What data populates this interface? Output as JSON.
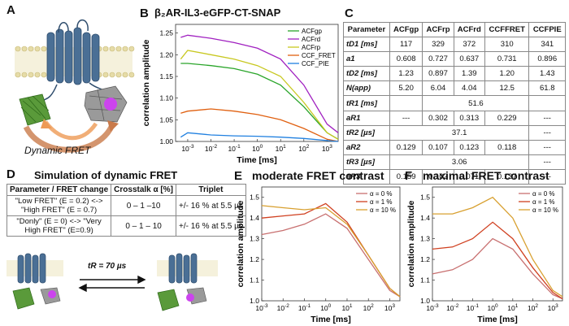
{
  "panel_labels": {
    "a": "A",
    "b": "B",
    "c": "C",
    "d": "D",
    "e": "E",
    "f": "F"
  },
  "panel_a": {
    "caption": "Dynamic FRET"
  },
  "panel_b": {
    "title": "β₂AR-IL3-eGFP-CT-SNAP",
    "xlabel": "Time [ms]",
    "ylabel": "correlation amplitude"
  },
  "panel_c": {
    "headers": [
      "Parameter",
      "ACFgp",
      "ACFrp",
      "ACFrd",
      "CCFFRET",
      "CCFPIE"
    ],
    "rows": [
      {
        "label": "tD1 [ms]",
        "cells": [
          "117",
          "329",
          "372",
          "310",
          "341"
        ]
      },
      {
        "label": "a1",
        "cells": [
          "0.608",
          "0.727",
          "0.637",
          "0.731",
          "0.896"
        ]
      },
      {
        "label": "tD2 [ms]",
        "cells": [
          "1.23",
          "0.897",
          "1.39",
          "1.20",
          "1.43"
        ]
      },
      {
        "label": "N(app)",
        "cells": [
          "5.20",
          "6.04",
          "4.04",
          "12.5",
          "61.8"
        ]
      },
      {
        "label": "tR1 [ms]",
        "cells": [
          "",
          "51.6",
          ""
        ]
      },
      {
        "label": "aR1",
        "cells": [
          "---",
          "0.302",
          "0.313",
          "0.229",
          "---"
        ]
      },
      {
        "label": "tR2 [µs]",
        "cells": [
          "37.1",
          "---"
        ]
      },
      {
        "label": "aR2",
        "cells": [
          "0.129",
          "0.107",
          "0.123",
          "0.118",
          "---"
        ]
      },
      {
        "label": "tR3 [µs]",
        "cells": [
          "3.06",
          "---"
        ]
      },
      {
        "label": "aR3",
        "cells": [
          "0.159",
          "0.102",
          "0.071",
          "0.137",
          "---"
        ]
      }
    ]
  },
  "panel_d": {
    "title": "Simulation of dynamic FRET",
    "headers": [
      "Parameter / FRET change",
      "Crosstalk α [%]",
      "Triplet"
    ],
    "rows": [
      {
        "param": "\"Low FRET\" (E = 0.2) <-> \"High FRET\" (E = 0.7)",
        "crosstalk": "0 – 1 –10",
        "triplet": "+/- 16 % at 5.5 µs"
      },
      {
        "param": "\"Donly\" (E = 0) <-> \"Very High FRET\" (E=0.9)",
        "crosstalk": "0 – 1 – 10",
        "triplet": "+/- 16 % at 5.5 µs"
      }
    ],
    "relaxation_label": "tR = 70 µs"
  },
  "panel_e": {
    "title": "moderate FRET contrast",
    "xlabel": "Time [ms]",
    "ylabel": "correlation amplitude"
  },
  "panel_f": {
    "title": "maximal FRET contrast",
    "xlabel": "Time [ms]",
    "ylabel": "correlation amplitude"
  },
  "chart_data": [
    {
      "type": "line",
      "panel": "B",
      "title": "β₂AR-IL3-eGFP-CT-SNAP",
      "xlabel": "Time [ms]",
      "ylabel": "correlation amplitude",
      "xscale": "log",
      "xlim": [
        0.0003,
        3000
      ],
      "ylim": [
        1.0,
        1.27
      ],
      "xticks": [
        "10^-3",
        "10^-2",
        "10^-1",
        "10^0",
        "10^1",
        "10^2",
        "10^3"
      ],
      "yticks": [
        "1.00",
        "1.05",
        "1.10",
        "1.15",
        "1.20",
        "1.25"
      ],
      "legend": "top-right",
      "series": [
        {
          "name": "ACFgp",
          "color": "#2aa52a",
          "x": [
            0.0005,
            0.001,
            0.01,
            0.1,
            1,
            10,
            100,
            1000,
            3000
          ],
          "y": [
            1.18,
            1.18,
            1.175,
            1.168,
            1.155,
            1.13,
            1.08,
            1.02,
            1.005
          ]
        },
        {
          "name": "ACFrd",
          "color": "#a020c0",
          "x": [
            0.0005,
            0.001,
            0.01,
            0.1,
            1,
            10,
            100,
            1000,
            3000
          ],
          "y": [
            1.24,
            1.245,
            1.238,
            1.228,
            1.215,
            1.19,
            1.13,
            1.04,
            1.02
          ]
        },
        {
          "name": "ACFrp",
          "color": "#c8c820",
          "x": [
            0.0005,
            0.001,
            0.01,
            0.1,
            1,
            10,
            100,
            1000,
            3000
          ],
          "y": [
            1.19,
            1.21,
            1.2,
            1.19,
            1.175,
            1.15,
            1.09,
            1.02,
            1.005
          ]
        },
        {
          "name": "CCF_FRET",
          "color": "#e06010",
          "x": [
            0.0005,
            0.001,
            0.01,
            0.1,
            1,
            10,
            100,
            1000,
            3000
          ],
          "y": [
            1.065,
            1.07,
            1.075,
            1.07,
            1.062,
            1.05,
            1.03,
            1.005,
            1.0
          ]
        },
        {
          "name": "CCF_PIE",
          "color": "#2080e0",
          "x": [
            0.0005,
            0.001,
            0.01,
            0.1,
            1,
            10,
            100,
            1000,
            3000
          ],
          "y": [
            1.01,
            1.02,
            1.015,
            1.013,
            1.012,
            1.01,
            1.007,
            1.002,
            1.0
          ]
        }
      ]
    },
    {
      "type": "line",
      "panel": "E",
      "title": "moderate FRET contrast",
      "xlabel": "Time [ms]",
      "ylabel": "correlation amplitude",
      "xscale": "log",
      "xlim": [
        0.001,
        3000
      ],
      "ylim": [
        1.0,
        1.55
      ],
      "xticks": [
        "10^-3",
        "10^-2",
        "10^-1",
        "10^0",
        "10^1",
        "10^2",
        "10^3"
      ],
      "yticks": [
        "1.0",
        "1.1",
        "1.2",
        "1.3",
        "1.4",
        "1.5"
      ],
      "legend": "top-right",
      "series": [
        {
          "name": "α = 0 %",
          "color": "#c87070",
          "x": [
            0.001,
            0.01,
            0.1,
            1,
            10,
            100,
            1000,
            3000
          ],
          "y": [
            1.32,
            1.34,
            1.37,
            1.42,
            1.35,
            1.2,
            1.05,
            1.02
          ]
        },
        {
          "name": "α = 1 %",
          "color": "#d04020",
          "x": [
            0.001,
            0.01,
            0.1,
            1,
            10,
            100,
            1000,
            3000
          ],
          "y": [
            1.4,
            1.41,
            1.42,
            1.47,
            1.38,
            1.22,
            1.06,
            1.02
          ]
        },
        {
          "name": "α = 10 %",
          "color": "#d8a030",
          "x": [
            0.001,
            0.01,
            0.1,
            1,
            10,
            100,
            1000,
            3000
          ],
          "y": [
            1.46,
            1.45,
            1.44,
            1.45,
            1.37,
            1.22,
            1.06,
            1.02
          ]
        }
      ]
    },
    {
      "type": "line",
      "panel": "F",
      "title": "maximal FRET contrast",
      "xlabel": "Time [ms]",
      "ylabel": "correlation amplitude",
      "xscale": "log",
      "xlim": [
        0.001,
        3000
      ],
      "ylim": [
        1.0,
        1.55
      ],
      "xticks": [
        "10^-3",
        "10^-2",
        "10^-1",
        "10^0",
        "10^1",
        "10^2",
        "10^3"
      ],
      "yticks": [
        "1.0",
        "1.1",
        "1.2",
        "1.3",
        "1.4",
        "1.5"
      ],
      "legend": "top-right",
      "series": [
        {
          "name": "α = 0 %",
          "color": "#c87070",
          "x": [
            0.001,
            0.01,
            0.1,
            1,
            10,
            100,
            1000,
            3000
          ],
          "y": [
            1.13,
            1.15,
            1.2,
            1.3,
            1.25,
            1.13,
            1.03,
            1.01
          ]
        },
        {
          "name": "α = 1 %",
          "color": "#d04020",
          "x": [
            0.001,
            0.01,
            0.1,
            1,
            10,
            100,
            1000,
            3000
          ],
          "y": [
            1.25,
            1.26,
            1.3,
            1.38,
            1.3,
            1.16,
            1.04,
            1.01
          ]
        },
        {
          "name": "α = 10 %",
          "color": "#d8a030",
          "x": [
            0.001,
            0.01,
            0.1,
            1,
            10,
            100,
            1000,
            3000
          ],
          "y": [
            1.42,
            1.42,
            1.45,
            1.5,
            1.4,
            1.2,
            1.05,
            1.02
          ]
        }
      ]
    }
  ]
}
